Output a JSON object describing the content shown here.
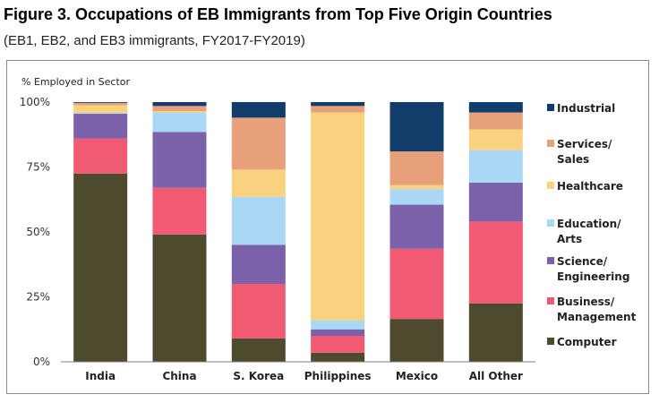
{
  "figure": {
    "title": "Figure 3. Occupations of EB Immigrants from Top Five Origin Countries",
    "subtitle": "(EB1, EB2, and EB3 immigrants, FY2017-FY2019)"
  },
  "chart_data": {
    "type": "bar",
    "stacked": true,
    "title": "",
    "xlabel": "",
    "ylabel": "% Employed in Sector",
    "ylim": [
      0,
      100
    ],
    "yticks": [
      0,
      25,
      50,
      75,
      100
    ],
    "ytick_labels": [
      "0%",
      "25%",
      "50%",
      "75%",
      "100%"
    ],
    "categories": [
      "India",
      "China",
      "S. Korea",
      "Philippines",
      "Mexico",
      "All Other"
    ],
    "legend_position": "right",
    "grid": false,
    "series": [
      {
        "name": "Computer",
        "legend_lines": [
          "Computer"
        ],
        "color": "#4d4a2e",
        "values": [
          72.5,
          49,
          9,
          3.5,
          16.5,
          22.5
        ]
      },
      {
        "name": "Business/ Management",
        "legend_lines": [
          "Business/",
          "Management"
        ],
        "color": "#f05a73",
        "values": [
          13.5,
          18,
          21,
          6.5,
          27,
          31.5
        ]
      },
      {
        "name": "Science/ Engineering",
        "legend_lines": [
          "Science/",
          "Engineering"
        ],
        "color": "#7b60aa",
        "values": [
          9.5,
          21.5,
          15,
          2.5,
          17,
          15
        ]
      },
      {
        "name": "Education/ Arts",
        "legend_lines": [
          "Education/",
          "Arts"
        ],
        "color": "#a9d7f4",
        "values": [
          0.3,
          7.5,
          18.5,
          3.5,
          6,
          12.5
        ]
      },
      {
        "name": "Healthcare",
        "legend_lines": [
          "Healthcare"
        ],
        "color": "#f8d27e",
        "values": [
          3,
          0.5,
          10.5,
          80,
          1.5,
          8
        ]
      },
      {
        "name": "Services/ Sales",
        "legend_lines": [
          "Services/",
          "Sales"
        ],
        "color": "#e8a07a",
        "values": [
          0.9,
          2,
          20,
          2.5,
          13,
          6.5
        ]
      },
      {
        "name": "Industrial",
        "legend_lines": [
          "Industrial"
        ],
        "color": "#123d6b",
        "values": [
          0.3,
          1.5,
          6,
          1.5,
          19,
          4
        ]
      }
    ]
  }
}
